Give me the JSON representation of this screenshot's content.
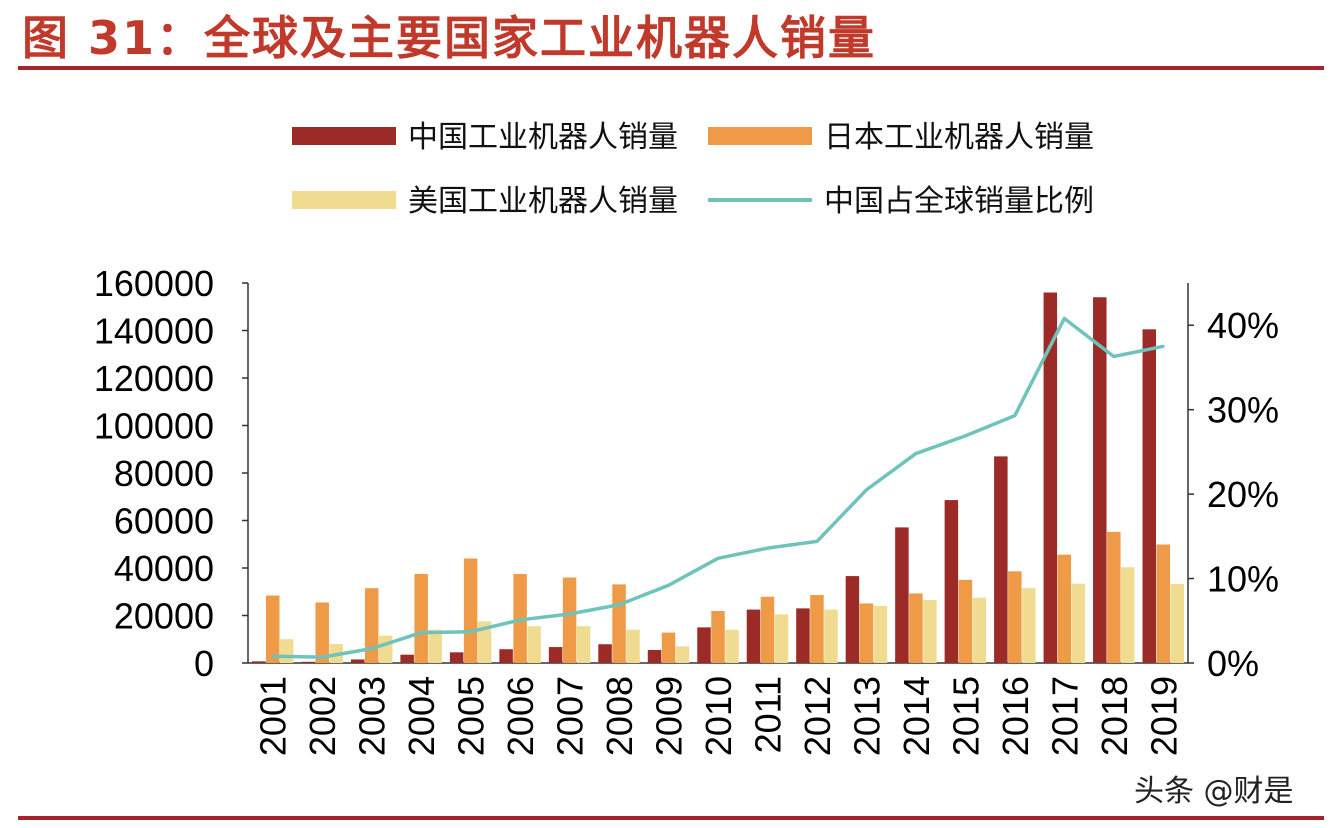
{
  "title": "图 31：全球及主要国家工业机器人销量",
  "watermark": "头条 @财是",
  "colors": {
    "china": "#9c2b27",
    "japan": "#ef9a47",
    "usa": "#f0dc91",
    "share": "#6fc3bb",
    "rule": "#a5242b",
    "title": "#c0392b"
  },
  "chart_data": {
    "type": "bar",
    "categories": [
      "2001",
      "2002",
      "2003",
      "2004",
      "2005",
      "2006",
      "2007",
      "2008",
      "2009",
      "2010",
      "2011",
      "2012",
      "2013",
      "2014",
      "2015",
      "2016",
      "2017",
      "2018",
      "2019"
    ],
    "series": [
      {
        "name": "中国工业机器人销量",
        "type": "bar",
        "axis": "left",
        "values": [
          700,
          500,
          1500,
          3500,
          4500,
          5800,
          6700,
          7900,
          5500,
          15000,
          22500,
          23000,
          36600,
          57100,
          68600,
          87000,
          156000,
          154000,
          140500
        ]
      },
      {
        "name": "日本工业机器人销量",
        "type": "bar",
        "axis": "left",
        "values": [
          28400,
          25500,
          31500,
          37500,
          44000,
          37500,
          36000,
          33100,
          12800,
          21900,
          27900,
          28600,
          25100,
          29300,
          35000,
          38600,
          45600,
          55200,
          49900
        ]
      },
      {
        "name": "美国工业机器人销量",
        "type": "bar",
        "axis": "left",
        "values": [
          10000,
          8000,
          11500,
          14000,
          17500,
          15500,
          15500,
          14000,
          7000,
          14000,
          20500,
          22500,
          24000,
          26500,
          27500,
          31500,
          33400,
          40300,
          33300
        ]
      },
      {
        "name": "中国占全球销量比例",
        "type": "line",
        "axis": "right",
        "values": [
          0.8,
          0.7,
          1.7,
          3.6,
          3.7,
          5.1,
          5.8,
          6.9,
          9.2,
          12.4,
          13.6,
          14.4,
          20.5,
          24.8,
          26.9,
          29.3,
          40.8,
          36.3,
          37.5
        ]
      }
    ],
    "y_left": {
      "ticks": [
        "0",
        "20000",
        "40000",
        "60000",
        "80000",
        "100000",
        "120000",
        "140000",
        "160000"
      ],
      "ylim": [
        0,
        160000
      ]
    },
    "y_right": {
      "ticks": [
        "0%",
        "10%",
        "20%",
        "30%",
        "40%"
      ],
      "ylim": [
        0,
        45
      ]
    },
    "legend_position": "top",
    "grid": false
  }
}
